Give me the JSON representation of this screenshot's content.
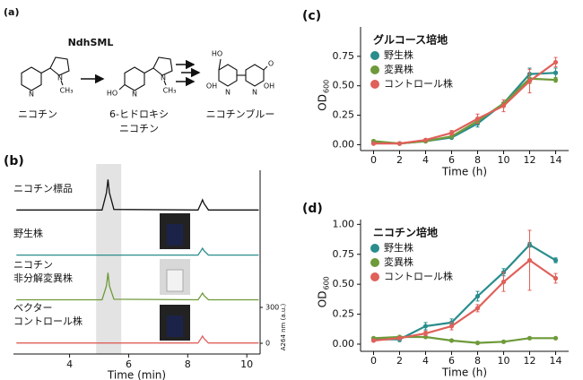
{
  "chart_data": [
    {
      "type": "scheme",
      "panel_label": "(a)",
      "enzyme": "NdhSML",
      "compounds": [
        {
          "name": [
            "ニコチン"
          ],
          "atoms": [
            "N",
            "N",
            "CH₃"
          ]
        },
        {
          "name": [
            "6-ヒドロキシ",
            "ニコチン"
          ],
          "atoms": [
            "HO",
            "N",
            "N",
            "CH₃"
          ]
        },
        {
          "name": [
            "ニコチンブルー"
          ],
          "atoms": [
            "HO",
            "O",
            "N",
            "N",
            "OH",
            "OH"
          ]
        }
      ]
    },
    {
      "type": "chromatogram",
      "panel_label": "(b)",
      "xlabel": "Time (min)",
      "ylabel": "A264 nm (a.u.)",
      "xlim": [
        2.1,
        10.45
      ],
      "xticks": [
        4,
        6,
        8,
        10
      ],
      "ylim": [
        0,
        300
      ],
      "yticks": [
        0,
        300
      ],
      "shade": [
        4.9,
        5.75
      ],
      "x": [
        2.2,
        5.1,
        5.25,
        5.3,
        5.35,
        5.5,
        8.35,
        8.45,
        8.5,
        8.55,
        8.7,
        10.4
      ],
      "series": [
        {
          "name": [
            "ニコチン標品"
          ],
          "color": "#111111",
          "values": [
            5,
            5,
            150,
            260,
            150,
            10,
            5,
            60,
            90,
            60,
            5,
            5
          ]
        },
        {
          "name": [
            "野生株"
          ],
          "color": "#2a8c8c",
          "values": [
            3,
            3,
            3,
            3,
            3,
            3,
            3,
            40,
            60,
            40,
            3,
            3
          ]
        },
        {
          "name": [
            "ニコチン",
            "非分解変異株"
          ],
          "color": "#6e9a3a",
          "values": [
            4,
            4,
            120,
            230,
            120,
            8,
            4,
            40,
            60,
            40,
            4,
            4
          ]
        },
        {
          "name": [
            "ベクター",
            "コントロール株"
          ],
          "color": "#e0605a",
          "values": [
            2,
            2,
            2,
            2,
            2,
            2,
            2,
            40,
            60,
            40,
            2,
            2
          ]
        }
      ]
    },
    {
      "type": "line",
      "panel_label": "(c)",
      "legend_title": "グルコース培地",
      "xlabel": "Time (h)",
      "ylabel": "OD",
      "ylabel_sub": "600",
      "x": [
        0,
        2,
        4,
        6,
        8,
        10,
        12,
        14
      ],
      "xlim": [
        -1,
        15
      ],
      "xticks": [
        0,
        2,
        4,
        6,
        8,
        10,
        12,
        14
      ],
      "ylim": [
        -0.05,
        1.0
      ],
      "yticks": [
        {
          "value": 0,
          "label": "0.00"
        },
        {
          "value": 0.25,
          "label": "0.25"
        },
        {
          "value": 0.5,
          "label": "0.50"
        },
        {
          "value": 0.75,
          "label": "0.75"
        }
      ],
      "series": [
        {
          "name": "野生株",
          "color": "#2a8c8c",
          "values": [
            0.02,
            0.01,
            0.03,
            0.06,
            0.18,
            0.35,
            0.6,
            0.61
          ],
          "errors": [
            0.01,
            0.01,
            0.01,
            0.01,
            0.03,
            0.03,
            0.05,
            0.04
          ]
        },
        {
          "name": "変異株",
          "color": "#6e9a3a",
          "values": [
            0.03,
            0.01,
            0.03,
            0.07,
            0.2,
            0.35,
            0.56,
            0.55
          ],
          "errors": [
            0.01,
            0.01,
            0.01,
            0.01,
            0.02,
            0.03,
            0.04,
            0.02
          ]
        },
        {
          "name": "コントロール株",
          "color": "#e0605a",
          "values": [
            0.01,
            0.01,
            0.04,
            0.1,
            0.22,
            0.33,
            0.54,
            0.7
          ],
          "errors": [
            0.01,
            0.01,
            0.01,
            0.02,
            0.04,
            0.05,
            0.1,
            0.04
          ]
        }
      ]
    },
    {
      "type": "line",
      "panel_label": "(d)",
      "legend_title": "ニコチン培地",
      "xlabel": "Time (h)",
      "ylabel": "OD",
      "ylabel_sub": "600",
      "x": [
        0,
        2,
        4,
        6,
        8,
        10,
        12,
        14
      ],
      "xlim": [
        -1,
        15
      ],
      "xticks": [
        0,
        2,
        4,
        6,
        8,
        10,
        12,
        14
      ],
      "ylim": [
        -0.06,
        1.04
      ],
      "yticks": [
        {
          "value": 0,
          "label": "0.00"
        },
        {
          "value": 0.25,
          "label": "0.25"
        },
        {
          "value": 0.5,
          "label": "0.50"
        },
        {
          "value": 0.75,
          "label": "0.75"
        },
        {
          "value": 1,
          "label": "1.00"
        }
      ],
      "series": [
        {
          "name": "野生株",
          "color": "#2a8c8c",
          "values": [
            0.04,
            0.04,
            0.15,
            0.18,
            0.4,
            0.6,
            0.83,
            0.7
          ],
          "errors": [
            0.01,
            0.02,
            0.03,
            0.03,
            0.04,
            0.03,
            0.02,
            0.02
          ]
        },
        {
          "name": "変異株",
          "color": "#6e9a3a",
          "values": [
            0.05,
            0.06,
            0.06,
            0.03,
            0.01,
            0.02,
            0.05,
            0.05
          ],
          "errors": [
            0.01,
            0.01,
            0.01,
            0.01,
            0.01,
            0.01,
            0.01,
            0.01
          ]
        },
        {
          "name": "コントロール株",
          "color": "#e0605a",
          "values": [
            0.03,
            0.05,
            0.09,
            0.15,
            0.3,
            0.52,
            0.7,
            0.55
          ],
          "errors": [
            0.01,
            0.01,
            0.02,
            0.03,
            0.03,
            0.08,
            0.25,
            0.04
          ]
        }
      ]
    }
  ]
}
